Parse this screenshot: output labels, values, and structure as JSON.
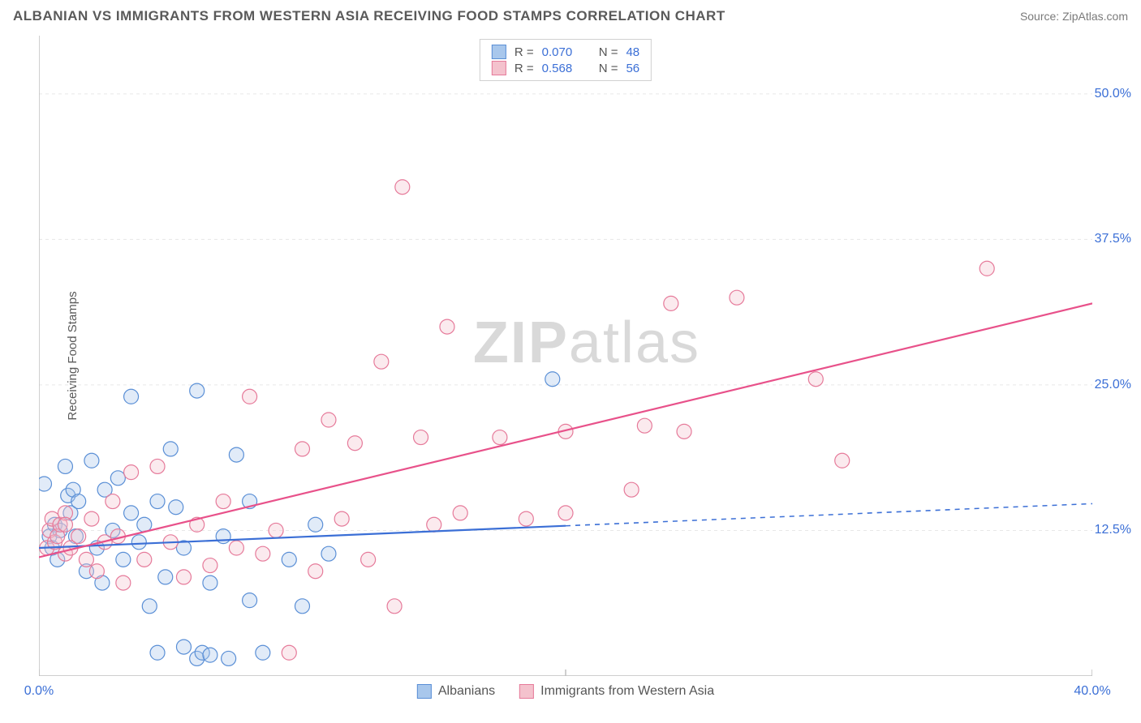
{
  "header": {
    "title": "ALBANIAN VS IMMIGRANTS FROM WESTERN ASIA RECEIVING FOOD STAMPS CORRELATION CHART",
    "source": "Source: ZipAtlas.com"
  },
  "ylabel": "Receiving Food Stamps",
  "watermark": {
    "bold": "ZIP",
    "rest": "atlas"
  },
  "chart": {
    "type": "scatter",
    "xlim": [
      0,
      40
    ],
    "ylim": [
      0,
      55
    ],
    "x_ticks": [
      {
        "v": 0,
        "label": "0.0%"
      },
      {
        "v": 40,
        "label": "40.0%"
      }
    ],
    "y_ticks": [
      {
        "v": 12.5,
        "label": "12.5%"
      },
      {
        "v": 25.0,
        "label": "25.0%"
      },
      {
        "v": 37.5,
        "label": "37.5%"
      },
      {
        "v": 50.0,
        "label": "50.0%"
      }
    ],
    "grid_color": "#e8e8e8",
    "axis_color": "#bfbfbf",
    "background_color": "#ffffff",
    "marker_radius": 9,
    "marker_stroke_width": 1.2,
    "marker_fill_opacity": 0.35,
    "series": [
      {
        "key": "albanians",
        "label": "Albanians",
        "fill": "#a8c7ec",
        "stroke": "#5a8fd6",
        "R": "0.070",
        "N": "48",
        "trend": {
          "y0": 11.0,
          "y40": 14.8,
          "solid_until_x": 20,
          "color": "#3b6fd6",
          "width": 2.2
        },
        "points": [
          [
            0.2,
            16.5
          ],
          [
            0.4,
            12.0
          ],
          [
            0.5,
            11.0
          ],
          [
            0.6,
            13.0
          ],
          [
            0.7,
            10.0
          ],
          [
            0.8,
            12.5
          ],
          [
            1.0,
            18.0
          ],
          [
            1.1,
            15.5
          ],
          [
            1.2,
            14.0
          ],
          [
            1.3,
            16.0
          ],
          [
            1.4,
            12.0
          ],
          [
            1.5,
            15.0
          ],
          [
            1.8,
            9.0
          ],
          [
            2.0,
            18.5
          ],
          [
            2.2,
            11.0
          ],
          [
            2.4,
            8.0
          ],
          [
            2.5,
            16.0
          ],
          [
            2.8,
            12.5
          ],
          [
            3.0,
            17.0
          ],
          [
            3.2,
            10.0
          ],
          [
            3.5,
            14.0
          ],
          [
            3.5,
            24.0
          ],
          [
            3.8,
            11.5
          ],
          [
            4.0,
            13.0
          ],
          [
            4.2,
            6.0
          ],
          [
            4.5,
            15.0
          ],
          [
            4.5,
            2.0
          ],
          [
            4.8,
            8.5
          ],
          [
            5.0,
            19.5
          ],
          [
            5.2,
            14.5
          ],
          [
            5.5,
            11.0
          ],
          [
            5.5,
            2.5
          ],
          [
            6.0,
            24.5
          ],
          [
            6.0,
            1.5
          ],
          [
            6.2,
            2.0
          ],
          [
            6.5,
            8.0
          ],
          [
            6.5,
            1.8
          ],
          [
            7.0,
            12.0
          ],
          [
            7.2,
            1.5
          ],
          [
            7.5,
            19.0
          ],
          [
            8.0,
            6.5
          ],
          [
            8.0,
            15.0
          ],
          [
            8.5,
            2.0
          ],
          [
            9.5,
            10.0
          ],
          [
            10.0,
            6.0
          ],
          [
            10.5,
            13.0
          ],
          [
            11.0,
            10.5
          ],
          [
            19.5,
            25.5
          ]
        ]
      },
      {
        "key": "western_asia",
        "label": "Immigrants from Western Asia",
        "fill": "#f4c2cd",
        "stroke": "#e67a9a",
        "R": "0.568",
        "N": "56",
        "trend": {
          "y0": 10.2,
          "y40": 32.0,
          "solid_until_x": 40,
          "color": "#e8518a",
          "width": 2.2
        },
        "points": [
          [
            0.3,
            11.0
          ],
          [
            0.4,
            12.5
          ],
          [
            0.5,
            13.5
          ],
          [
            0.6,
            11.5
          ],
          [
            0.7,
            12.0
          ],
          [
            0.8,
            13.0
          ],
          [
            1.0,
            14.0
          ],
          [
            1.0,
            10.5
          ],
          [
            1.2,
            11.0
          ],
          [
            1.5,
            12.0
          ],
          [
            1.8,
            10.0
          ],
          [
            2.0,
            13.5
          ],
          [
            2.2,
            9.0
          ],
          [
            2.5,
            11.5
          ],
          [
            2.8,
            15.0
          ],
          [
            3.0,
            12.0
          ],
          [
            3.2,
            8.0
          ],
          [
            3.5,
            17.5
          ],
          [
            4.0,
            10.0
          ],
          [
            4.5,
            18.0
          ],
          [
            5.0,
            11.5
          ],
          [
            5.5,
            8.5
          ],
          [
            6.0,
            13.0
          ],
          [
            6.5,
            9.5
          ],
          [
            7.0,
            15.0
          ],
          [
            7.5,
            11.0
          ],
          [
            8.0,
            24.0
          ],
          [
            8.5,
            10.5
          ],
          [
            9.0,
            12.5
          ],
          [
            9.5,
            2.0
          ],
          [
            10.0,
            19.5
          ],
          [
            10.5,
            9.0
          ],
          [
            11.0,
            22.0
          ],
          [
            11.5,
            13.5
          ],
          [
            12.0,
            20.0
          ],
          [
            12.5,
            10.0
          ],
          [
            13.0,
            27.0
          ],
          [
            13.5,
            6.0
          ],
          [
            13.8,
            42.0
          ],
          [
            14.5,
            20.5
          ],
          [
            15.0,
            13.0
          ],
          [
            15.5,
            30.0
          ],
          [
            16.0,
            14.0
          ],
          [
            17.5,
            20.5
          ],
          [
            18.5,
            13.5
          ],
          [
            20.0,
            14.0
          ],
          [
            20.0,
            21.0
          ],
          [
            22.5,
            16.0
          ],
          [
            23.0,
            21.5
          ],
          [
            24.0,
            32.0
          ],
          [
            24.5,
            21.0
          ],
          [
            26.5,
            32.5
          ],
          [
            29.5,
            25.5
          ],
          [
            30.5,
            18.5
          ],
          [
            36.0,
            35.0
          ],
          [
            1.0,
            13.0
          ]
        ]
      }
    ]
  },
  "legend_top_labels": {
    "R": "R =",
    "N": "N ="
  },
  "legend_bottom": [
    {
      "series": "albanians"
    },
    {
      "series": "western_asia"
    }
  ]
}
